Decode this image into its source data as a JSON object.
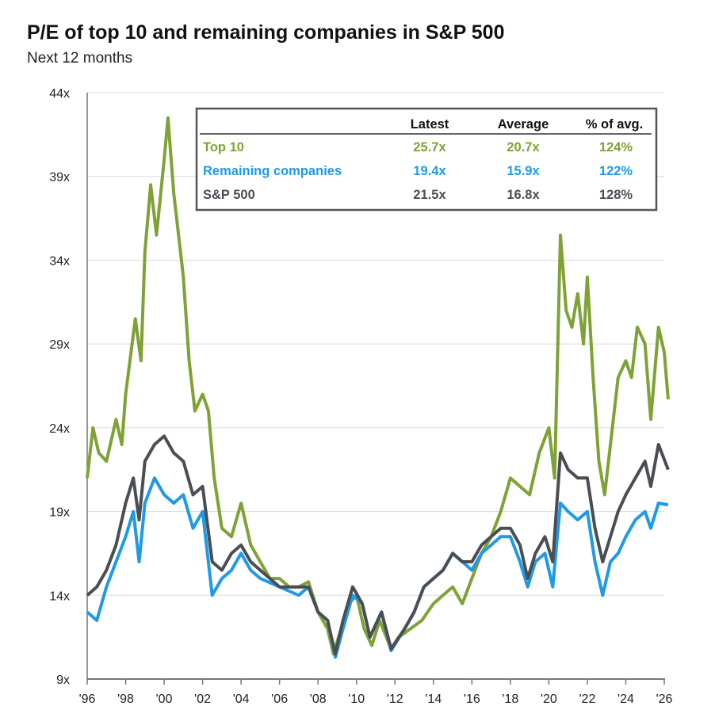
{
  "chart_data": {
    "type": "line",
    "title": "P/E of top 10 and remaining companies in S&P 500",
    "subtitle": "Next 12 months",
    "xlabel": "",
    "ylabel": "",
    "xlim": [
      1996,
      2026
    ],
    "ylim": [
      9,
      44
    ],
    "grid": true,
    "y_ticks": [
      9,
      14,
      19,
      24,
      29,
      34,
      39,
      44
    ],
    "y_tick_labels": [
      "9x",
      "14x",
      "19x",
      "24x",
      "29x",
      "34x",
      "39x",
      "44x"
    ],
    "x_ticks": [
      1996,
      1998,
      2000,
      2002,
      2004,
      2006,
      2008,
      2010,
      2012,
      2014,
      2016,
      2018,
      2020,
      2022,
      2024,
      2026
    ],
    "x_tick_labels": [
      "'96",
      "'98",
      "'00",
      "'02",
      "'04",
      "'06",
      "'08",
      "'10",
      "'12",
      "'14",
      "'16",
      "'18",
      "'20",
      "'22",
      "'24",
      "'26"
    ],
    "legend": {
      "placement": "top-right",
      "headers": [
        "Latest",
        "Average",
        "% of avg."
      ],
      "rows": [
        {
          "name": "Top 10",
          "latest": "25.7x",
          "average": "20.7x",
          "pct_of_avg": "124%",
          "color": "#7fa236"
        },
        {
          "name": "Remaining companies",
          "latest": "19.4x",
          "average": "15.9x",
          "pct_of_avg": "122%",
          "color": "#1f9ae6"
        },
        {
          "name": "S&P 500",
          "latest": "21.5x",
          "average": "16.8x",
          "pct_of_avg": "128%",
          "color": "#4a4e54"
        }
      ]
    },
    "series": [
      {
        "name": "Top 10",
        "color": "#7fa236",
        "points": [
          [
            1996,
            21
          ],
          [
            1996.3,
            24
          ],
          [
            1996.6,
            22.5
          ],
          [
            1997,
            22
          ],
          [
            1997.5,
            24.5
          ],
          [
            1997.8,
            23
          ],
          [
            1998,
            26
          ],
          [
            1998.5,
            30.5
          ],
          [
            1998.8,
            28
          ],
          [
            1999,
            34.5
          ],
          [
            1999.3,
            38.5
          ],
          [
            1999.6,
            35.5
          ],
          [
            2000,
            40
          ],
          [
            2000.2,
            42.5
          ],
          [
            2000.5,
            38
          ],
          [
            2000.8,
            35
          ],
          [
            2001,
            33
          ],
          [
            2001.3,
            28
          ],
          [
            2001.6,
            25
          ],
          [
            2002,
            26
          ],
          [
            2002.3,
            25
          ],
          [
            2002.6,
            21
          ],
          [
            2003,
            18
          ],
          [
            2003.5,
            17.5
          ],
          [
            2004,
            19.5
          ],
          [
            2004.5,
            17
          ],
          [
            2005,
            16
          ],
          [
            2005.5,
            15
          ],
          [
            2006,
            15
          ],
          [
            2006.5,
            14.5
          ],
          [
            2007,
            14.5
          ],
          [
            2007.5,
            14.8
          ],
          [
            2008,
            13
          ],
          [
            2008.5,
            12
          ],
          [
            2008.8,
            10.5
          ],
          [
            2009.2,
            12
          ],
          [
            2009.6,
            13.5
          ],
          [
            2010,
            14
          ],
          [
            2010.4,
            12
          ],
          [
            2010.8,
            11
          ],
          [
            2011.2,
            12.5
          ],
          [
            2011.8,
            10.8
          ],
          [
            2012.2,
            11.5
          ],
          [
            2012.8,
            12
          ],
          [
            2013.4,
            12.5
          ],
          [
            2014,
            13.5
          ],
          [
            2014.5,
            14
          ],
          [
            2015,
            14.5
          ],
          [
            2015.5,
            13.5
          ],
          [
            2016,
            15
          ],
          [
            2016.5,
            16.5
          ],
          [
            2017,
            17.5
          ],
          [
            2017.5,
            19
          ],
          [
            2018,
            21
          ],
          [
            2018.5,
            20.5
          ],
          [
            2019,
            20
          ],
          [
            2019.5,
            22.5
          ],
          [
            2020,
            24
          ],
          [
            2020.3,
            21
          ],
          [
            2020.6,
            35.5
          ],
          [
            2020.9,
            31
          ],
          [
            2021.2,
            30
          ],
          [
            2021.5,
            32
          ],
          [
            2021.8,
            29
          ],
          [
            2022,
            33
          ],
          [
            2022.3,
            27
          ],
          [
            2022.6,
            22
          ],
          [
            2022.9,
            20
          ],
          [
            2023.2,
            23
          ],
          [
            2023.6,
            27
          ],
          [
            2024,
            28
          ],
          [
            2024.3,
            27
          ],
          [
            2024.6,
            30
          ],
          [
            2025,
            29
          ],
          [
            2025.3,
            24.5
          ],
          [
            2025.7,
            30
          ],
          [
            2026,
            28.5
          ],
          [
            2026.2,
            25.7
          ]
        ]
      },
      {
        "name": "Remaining companies",
        "color": "#1f9ae6",
        "points": [
          [
            1996,
            13
          ],
          [
            1996.5,
            12.5
          ],
          [
            1997,
            14.5
          ],
          [
            1997.5,
            16
          ],
          [
            1998,
            17.5
          ],
          [
            1998.4,
            19
          ],
          [
            1998.7,
            16
          ],
          [
            1999,
            19.5
          ],
          [
            1999.5,
            21
          ],
          [
            2000,
            20
          ],
          [
            2000.5,
            19.5
          ],
          [
            2001,
            20
          ],
          [
            2001.5,
            18
          ],
          [
            2002,
            19
          ],
          [
            2002.5,
            14
          ],
          [
            2003,
            15
          ],
          [
            2003.5,
            15.5
          ],
          [
            2004,
            16.5
          ],
          [
            2004.5,
            15.5
          ],
          [
            2005,
            15
          ],
          [
            2006,
            14.5
          ],
          [
            2007,
            14
          ],
          [
            2007.5,
            14.5
          ],
          [
            2008,
            13
          ],
          [
            2008.5,
            12.5
          ],
          [
            2008.9,
            10.3
          ],
          [
            2009.3,
            12
          ],
          [
            2009.8,
            14
          ],
          [
            2010.3,
            13.5
          ],
          [
            2010.7,
            11.5
          ],
          [
            2011.3,
            13
          ],
          [
            2011.8,
            10.7
          ],
          [
            2012.5,
            12
          ],
          [
            2013,
            13
          ],
          [
            2013.5,
            14.5
          ],
          [
            2014,
            15
          ],
          [
            2014.5,
            15.5
          ],
          [
            2015,
            16.5
          ],
          [
            2015.5,
            16
          ],
          [
            2016,
            15.5
          ],
          [
            2016.5,
            16.5
          ],
          [
            2017,
            17
          ],
          [
            2017.5,
            17.5
          ],
          [
            2018,
            17.5
          ],
          [
            2018.5,
            16
          ],
          [
            2018.9,
            14.5
          ],
          [
            2019.3,
            16
          ],
          [
            2019.8,
            16.5
          ],
          [
            2020.2,
            14.5
          ],
          [
            2020.6,
            19.5
          ],
          [
            2021,
            19
          ],
          [
            2021.5,
            18.5
          ],
          [
            2022,
            19
          ],
          [
            2022.4,
            16
          ],
          [
            2022.8,
            14
          ],
          [
            2023.2,
            16
          ],
          [
            2023.6,
            16.5
          ],
          [
            2024,
            17.5
          ],
          [
            2024.5,
            18.5
          ],
          [
            2025,
            19
          ],
          [
            2025.3,
            18
          ],
          [
            2025.7,
            19.5
          ],
          [
            2026.2,
            19.4
          ]
        ]
      },
      {
        "name": "S&P 500",
        "color": "#4a4e54",
        "points": [
          [
            1996,
            14
          ],
          [
            1996.5,
            14.5
          ],
          [
            1997,
            15.5
          ],
          [
            1997.5,
            17
          ],
          [
            1998,
            19.5
          ],
          [
            1998.4,
            21
          ],
          [
            1998.7,
            18.5
          ],
          [
            1999,
            22
          ],
          [
            1999.5,
            23
          ],
          [
            2000,
            23.5
          ],
          [
            2000.5,
            22.5
          ],
          [
            2001,
            22
          ],
          [
            2001.5,
            20
          ],
          [
            2002,
            20.5
          ],
          [
            2002.5,
            16
          ],
          [
            2003,
            15.5
          ],
          [
            2003.5,
            16.5
          ],
          [
            2004,
            17
          ],
          [
            2004.5,
            16
          ],
          [
            2005,
            15.5
          ],
          [
            2006,
            14.5
          ],
          [
            2007,
            14.5
          ],
          [
            2007.5,
            14.5
          ],
          [
            2008,
            13
          ],
          [
            2008.5,
            12.5
          ],
          [
            2008.9,
            10.5
          ],
          [
            2009.3,
            12.5
          ],
          [
            2009.8,
            14.5
          ],
          [
            2010.3,
            13.5
          ],
          [
            2010.7,
            11.5
          ],
          [
            2011.3,
            13
          ],
          [
            2011.8,
            10.8
          ],
          [
            2012.5,
            12
          ],
          [
            2013,
            13
          ],
          [
            2013.5,
            14.5
          ],
          [
            2014,
            15
          ],
          [
            2014.5,
            15.5
          ],
          [
            2015,
            16.5
          ],
          [
            2015.5,
            16
          ],
          [
            2016,
            16
          ],
          [
            2016.5,
            17
          ],
          [
            2017,
            17.5
          ],
          [
            2017.5,
            18
          ],
          [
            2018,
            18
          ],
          [
            2018.5,
            17
          ],
          [
            2018.9,
            15
          ],
          [
            2019.3,
            16.5
          ],
          [
            2019.8,
            17.5
          ],
          [
            2020.2,
            16
          ],
          [
            2020.6,
            22.5
          ],
          [
            2021,
            21.5
          ],
          [
            2021.5,
            21
          ],
          [
            2022,
            21
          ],
          [
            2022.4,
            18
          ],
          [
            2022.8,
            16
          ],
          [
            2023.2,
            17.5
          ],
          [
            2023.6,
            19
          ],
          [
            2024,
            20
          ],
          [
            2024.5,
            21
          ],
          [
            2025,
            22
          ],
          [
            2025.3,
            20.5
          ],
          [
            2025.7,
            23
          ],
          [
            2026.2,
            21.5
          ]
        ]
      }
    ]
  }
}
